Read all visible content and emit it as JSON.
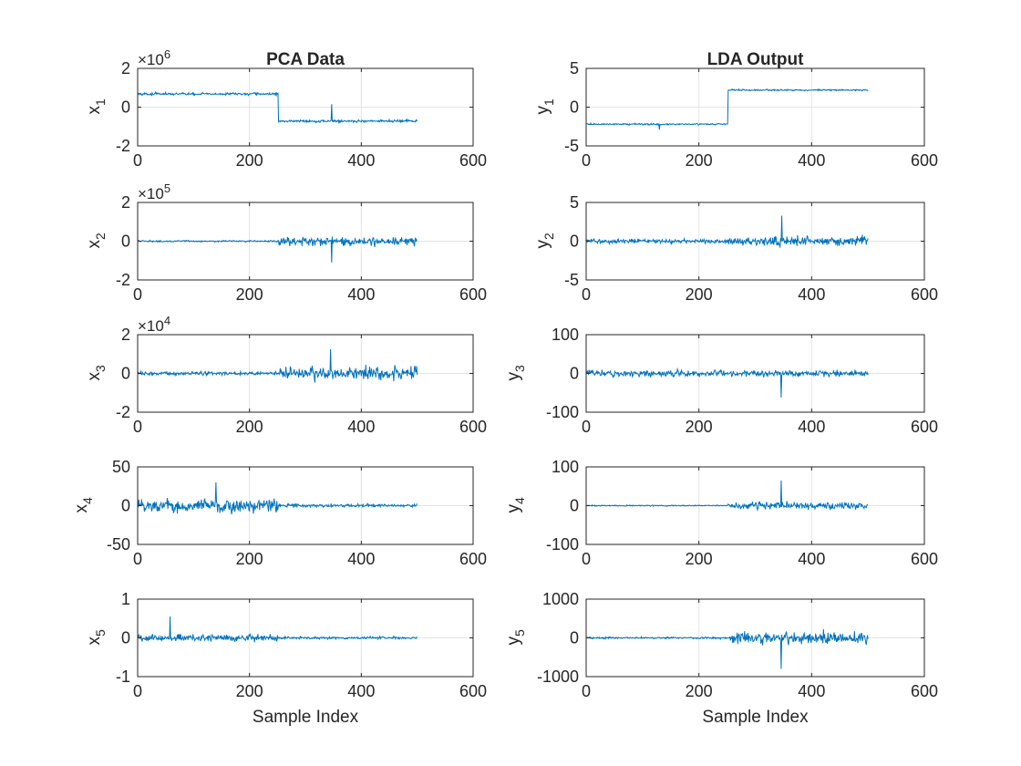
{
  "figure": {
    "background": "#ffffff",
    "line_color": "#0072bd",
    "grid_color": "#e3e3e3",
    "axis_color": "#262626"
  },
  "chart_data": [
    {
      "type": "line",
      "column": "left",
      "row": 0,
      "title": "PCA Data",
      "ylabel_base": "x",
      "ylabel_sub": "1",
      "exponent_base": "×10",
      "exponent": "6",
      "xlim": [
        0,
        600
      ],
      "ylim": [
        -2,
        2
      ],
      "xticks": [
        0,
        200,
        400,
        600
      ],
      "xtick_labels": [
        "0",
        "200",
        "400",
        "600"
      ],
      "yticks": [
        -2,
        0,
        2
      ],
      "ytick_labels": [
        "-2",
        "0",
        "2"
      ],
      "xlabel": "",
      "grid": true,
      "n_points": 500,
      "series": [
        {
          "shape": "step",
          "mean_before": 0.68,
          "mean_after": -0.72,
          "step_at": 252,
          "noise": 0.08,
          "spike_at": 347,
          "spike_value": 0.15
        }
      ]
    },
    {
      "type": "line",
      "column": "left",
      "row": 1,
      "title": "",
      "ylabel_base": "x",
      "ylabel_sub": "2",
      "exponent_base": "×10",
      "exponent": "5",
      "xlim": [
        0,
        600
      ],
      "ylim": [
        -2,
        2
      ],
      "xticks": [
        0,
        200,
        400,
        600
      ],
      "xtick_labels": [
        "0",
        "200",
        "400",
        "600"
      ],
      "yticks": [
        -2,
        0,
        2
      ],
      "ytick_labels": [
        "-2",
        "0",
        "2"
      ],
      "xlabel": "",
      "grid": true,
      "n_points": 500,
      "series": [
        {
          "shape": "noise",
          "amp_before": 0.05,
          "amp_after": 0.28,
          "change_at": 252,
          "spike_at": 347,
          "spike_value": -1.1
        }
      ]
    },
    {
      "type": "line",
      "column": "left",
      "row": 2,
      "title": "",
      "ylabel_base": "x",
      "ylabel_sub": "3",
      "exponent_base": "×10",
      "exponent": "4",
      "xlim": [
        0,
        600
      ],
      "ylim": [
        -2,
        2
      ],
      "xticks": [
        0,
        200,
        400,
        600
      ],
      "xtick_labels": [
        "0",
        "200",
        "400",
        "600"
      ],
      "yticks": [
        -2,
        0,
        2
      ],
      "ytick_labels": [
        "-2",
        "0",
        "2"
      ],
      "xlabel": "",
      "grid": true,
      "n_points": 500,
      "series": [
        {
          "shape": "noise",
          "amp_before": 0.12,
          "amp_after": 0.42,
          "change_at": 255,
          "spike_at": 345,
          "spike_value": 1.25
        }
      ]
    },
    {
      "type": "line",
      "column": "left",
      "row": 3,
      "title": "",
      "ylabel_base": "x",
      "ylabel_sub": "4",
      "exponent_base": "",
      "exponent": "",
      "xlim": [
        0,
        600
      ],
      "ylim": [
        -50,
        50
      ],
      "xticks": [
        0,
        200,
        400,
        600
      ],
      "xtick_labels": [
        "0",
        "200",
        "400",
        "600"
      ],
      "yticks": [
        -50,
        0,
        50
      ],
      "ytick_labels": [
        "-50",
        "0",
        "50"
      ],
      "xlabel": "",
      "grid": true,
      "n_points": 500,
      "series": [
        {
          "shape": "noise",
          "amp_before": 11,
          "amp_after": 2.5,
          "change_at": 252,
          "spike_at": 140,
          "spike_value": 30
        }
      ]
    },
    {
      "type": "line",
      "column": "left",
      "row": 4,
      "title": "",
      "ylabel_base": "x",
      "ylabel_sub": "5",
      "exponent_base": "",
      "exponent": "",
      "xlim": [
        0,
        600
      ],
      "ylim": [
        -1,
        1
      ],
      "xticks": [
        0,
        200,
        400,
        600
      ],
      "xtick_labels": [
        "0",
        "200",
        "400",
        "600"
      ],
      "yticks": [
        -1,
        0,
        1
      ],
      "ytick_labels": [
        "-1",
        "0",
        "1"
      ],
      "xlabel": "Sample Index",
      "grid": true,
      "n_points": 500,
      "series": [
        {
          "shape": "noise",
          "amp_before": 0.11,
          "amp_after": 0.04,
          "change_at": 252,
          "spike_at": 58,
          "spike_value": 0.55
        }
      ]
    },
    {
      "type": "line",
      "column": "right",
      "row": 0,
      "title": "LDA Output",
      "ylabel_base": "y",
      "ylabel_sub": "1",
      "exponent_base": "",
      "exponent": "",
      "xlim": [
        0,
        600
      ],
      "ylim": [
        -5,
        5
      ],
      "xticks": [
        0,
        200,
        400,
        600
      ],
      "xtick_labels": [
        "0",
        "200",
        "400",
        "600"
      ],
      "yticks": [
        -5,
        0,
        5
      ],
      "ytick_labels": [
        "-5",
        "0",
        "5"
      ],
      "xlabel": "",
      "grid": true,
      "n_points": 500,
      "series": [
        {
          "shape": "step",
          "mean_before": -2.2,
          "mean_after": 2.2,
          "step_at": 252,
          "noise": 0.12,
          "spike_at": 130,
          "spike_value": -2.9
        }
      ]
    },
    {
      "type": "line",
      "column": "right",
      "row": 1,
      "title": "",
      "ylabel_base": "y",
      "ylabel_sub": "2",
      "exponent_base": "",
      "exponent": "",
      "xlim": [
        0,
        600
      ],
      "ylim": [
        -5,
        5
      ],
      "xticks": [
        0,
        200,
        400,
        600
      ],
      "xtick_labels": [
        "0",
        "200",
        "400",
        "600"
      ],
      "yticks": [
        -5,
        0,
        5
      ],
      "ytick_labels": [
        "-5",
        "0",
        "5"
      ],
      "xlabel": "",
      "grid": true,
      "n_points": 500,
      "series": [
        {
          "shape": "noise",
          "amp_before": 0.35,
          "amp_after": 0.75,
          "change_at": 252,
          "spike_at": 347,
          "spike_value": 3.3
        }
      ]
    },
    {
      "type": "line",
      "column": "right",
      "row": 2,
      "title": "",
      "ylabel_base": "y",
      "ylabel_sub": "3",
      "exponent_base": "",
      "exponent": "",
      "xlim": [
        0,
        600
      ],
      "ylim": [
        -100,
        100
      ],
      "xticks": [
        0,
        200,
        400,
        600
      ],
      "xtick_labels": [
        "0",
        "200",
        "400",
        "600"
      ],
      "yticks": [
        -100,
        0,
        100
      ],
      "ytick_labels": [
        "-100",
        "0",
        "100"
      ],
      "xlabel": "",
      "grid": true,
      "n_points": 500,
      "series": [
        {
          "shape": "noise",
          "amp_before": 10,
          "amp_after": 9,
          "change_at": 252,
          "spike_at": 346,
          "spike_value": -62
        }
      ]
    },
    {
      "type": "line",
      "column": "right",
      "row": 3,
      "title": "",
      "ylabel_base": "y",
      "ylabel_sub": "4",
      "exponent_base": "",
      "exponent": "",
      "xlim": [
        0,
        600
      ],
      "ylim": [
        -100,
        100
      ],
      "xticks": [
        0,
        200,
        400,
        600
      ],
      "xtick_labels": [
        "0",
        "200",
        "400",
        "600"
      ],
      "yticks": [
        -100,
        0,
        100
      ],
      "ytick_labels": [
        "-100",
        "0",
        "100"
      ],
      "xlabel": "",
      "grid": true,
      "n_points": 500,
      "series": [
        {
          "shape": "noise",
          "amp_before": 1.8,
          "amp_after": 11,
          "change_at": 252,
          "spike_at": 346,
          "spike_value": 65
        }
      ]
    },
    {
      "type": "line",
      "column": "right",
      "row": 4,
      "title": "",
      "ylabel_base": "y",
      "ylabel_sub": "5",
      "exponent_base": "",
      "exponent": "",
      "xlim": [
        0,
        600
      ],
      "ylim": [
        -1000,
        1000
      ],
      "xticks": [
        0,
        200,
        400,
        600
      ],
      "xtick_labels": [
        "0",
        "200",
        "400",
        "600"
      ],
      "yticks": [
        -1000,
        0,
        1000
      ],
      "ytick_labels": [
        "-1000",
        "0",
        "1000"
      ],
      "xlabel": "Sample Index",
      "grid": true,
      "n_points": 500,
      "series": [
        {
          "shape": "noise",
          "amp_before": 30,
          "amp_after": 190,
          "change_at": 255,
          "spike_at": 346,
          "spike_value": -800
        }
      ]
    }
  ]
}
